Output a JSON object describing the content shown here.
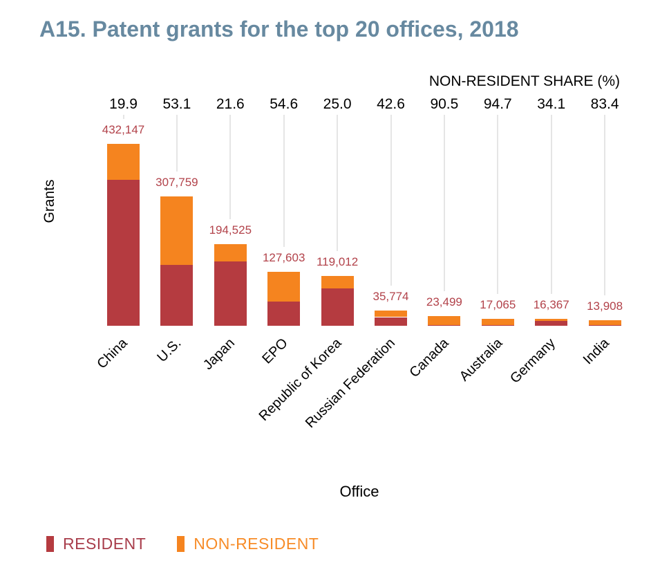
{
  "chart_data": {
    "type": "bar",
    "stacked": true,
    "title": "A15. Patent grants for the top 20 offices, 2018",
    "xlabel": "Office",
    "ylabel": "Grants",
    "secondary_axis_label": "NON-RESIDENT SHARE (%)",
    "categories": [
      "China",
      "U.S.",
      "Japan",
      "EPO",
      "Republic of Korea",
      "Russian Federation",
      "Canada",
      "Australia",
      "Germany",
      "India"
    ],
    "totals": [
      432147,
      307759,
      194525,
      127603,
      119012,
      35774,
      23499,
      17065,
      16367,
      13908
    ],
    "total_labels": [
      "432,147",
      "307,759",
      "194,525",
      "127,603",
      "119,012",
      "35,774",
      "23,499",
      "17,065",
      "16,367",
      "13,908"
    ],
    "non_resident_share": [
      19.9,
      53.1,
      21.6,
      54.6,
      25.0,
      42.6,
      90.5,
      94.7,
      34.1,
      83.4
    ],
    "non_resident_share_labels": [
      "19.9",
      "53.1",
      "21.6",
      "54.6",
      "25.0",
      "42.6",
      "90.5",
      "94.7",
      "34.1",
      "83.4"
    ],
    "series": [
      {
        "name": "RESIDENT",
        "color": "#B53B40",
        "values": [
          346150,
          144339,
          152508,
          57932,
          89259,
          20534,
          2232,
          904,
          10786,
          2309
        ]
      },
      {
        "name": "NON-RESIDENT",
        "color": "#F5841F",
        "values": [
          85997,
          163420,
          42017,
          69671,
          29753,
          15240,
          21267,
          16161,
          5581,
          11599
        ]
      }
    ],
    "legend_position": "bottom-left",
    "grid": false,
    "ylim": [
      0,
      432147
    ]
  },
  "colors": {
    "title": "#6789A0",
    "resident": "#B53B40",
    "non_resident": "#F5841F",
    "value_label": "#B2424A",
    "legend_resident_text": "#A83D4B",
    "legend_nonresident_text": "#F78C28",
    "connector_line": "#CBCBCB",
    "axis_text": "#000000"
  }
}
